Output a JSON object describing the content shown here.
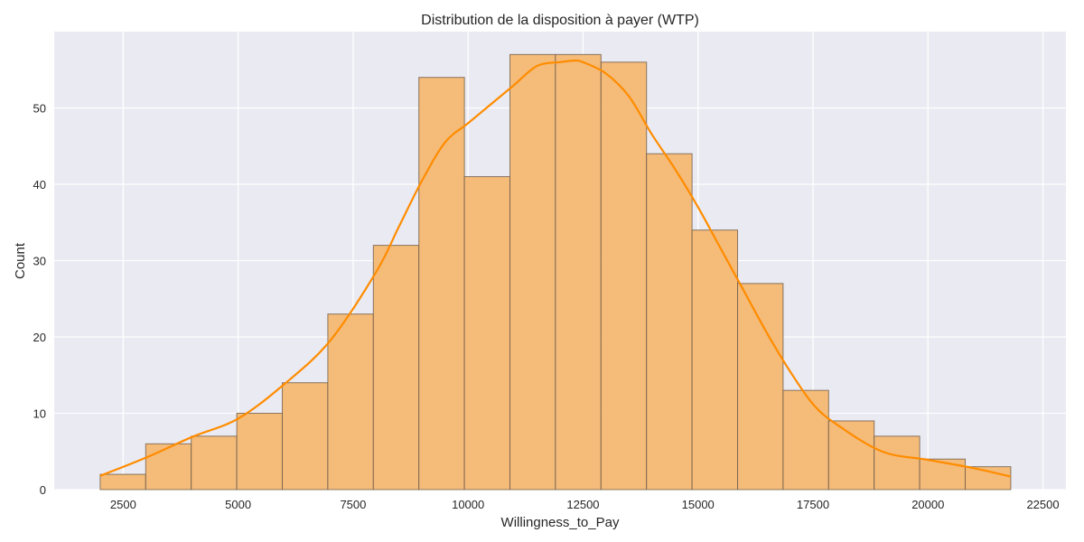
{
  "chart_data": {
    "type": "bar",
    "title": "Distribution de la disposition à payer (WTP)",
    "xlabel": "Willingness_to_Pay",
    "ylabel": "Count",
    "xlim": [
      1000,
      23000
    ],
    "ylim": [
      0,
      60
    ],
    "xticks": [
      2500,
      5000,
      7500,
      10000,
      12500,
      15000,
      17500,
      20000,
      22500
    ],
    "yticks": [
      0,
      10,
      20,
      30,
      40,
      50
    ],
    "grid": true,
    "bin_edges": [
      2000,
      2990,
      3980,
      4970,
      5960,
      6950,
      7940,
      8930,
      9920,
      10910,
      11900,
      12890,
      13880,
      14870,
      15860,
      16850,
      17840,
      18830,
      19820,
      20810,
      21800
    ],
    "values": [
      2,
      6,
      7,
      10,
      14,
      23,
      32,
      54,
      41,
      57,
      57,
      56,
      44,
      34,
      27,
      13,
      9,
      7,
      4,
      3
    ],
    "kde": {
      "x": [
        2000,
        3000,
        4000,
        5000,
        6000,
        7000,
        8000,
        8500,
        9000,
        9500,
        10000,
        10500,
        11000,
        11500,
        12000,
        12300,
        12500,
        13000,
        13500,
        14000,
        14500,
        15000,
        15500,
        16000,
        16500,
        17000,
        17500,
        18000,
        19000,
        20000,
        21000,
        21800
      ],
      "y": [
        1.8,
        4.2,
        6.9,
        9.3,
        13.8,
        19.5,
        28.5,
        34.5,
        40.5,
        45.5,
        48.0,
        50.5,
        53.0,
        55.5,
        56.0,
        56.2,
        56.0,
        54.5,
        51.5,
        46.5,
        42.0,
        37.0,
        31.5,
        26.0,
        20.5,
        15.5,
        11.2,
        8.6,
        5.0,
        3.9,
        2.8,
        1.7
      ]
    },
    "colors": {
      "bar_fill": "#f4bb79",
      "bar_edge": "#6f5c4a",
      "kde_line": "#ff8c00",
      "plot_bg": "#eaeaf2",
      "grid": "#ffffff"
    }
  }
}
